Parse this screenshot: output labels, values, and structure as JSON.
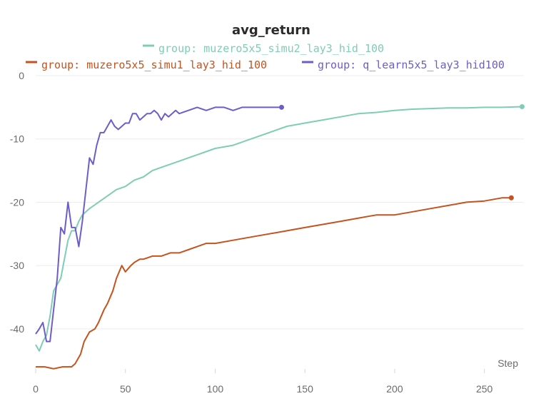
{
  "chart_data": {
    "type": "line",
    "title": "avg_return",
    "xlabel": "Step",
    "ylabel": "",
    "xlim": [
      0,
      272
    ],
    "ylim": [
      -47,
      0
    ],
    "xticks": [
      0,
      50,
      100,
      150,
      200,
      250
    ],
    "yticks": [
      0,
      -10,
      -20,
      -30,
      -40
    ],
    "grid": true,
    "legend_position": "top",
    "series": [
      {
        "name": "group: muzero5x5_simu2_lay3_hid_100",
        "color": "#7fcdb4",
        "x": [
          0,
          2,
          4,
          6,
          8,
          10,
          12,
          14,
          16,
          18,
          20,
          22,
          24,
          26,
          28,
          30,
          35,
          40,
          45,
          50,
          55,
          60,
          65,
          70,
          75,
          80,
          85,
          90,
          95,
          100,
          110,
          120,
          130,
          140,
          150,
          160,
          170,
          180,
          190,
          200,
          210,
          220,
          230,
          240,
          250,
          260,
          271
        ],
        "values": [
          -42.5,
          -43.5,
          -42,
          -41,
          -38,
          -34,
          -33,
          -32,
          -29,
          -26,
          -24.5,
          -24.5,
          -23,
          -22,
          -21.5,
          -21,
          -20,
          -19,
          -18,
          -17.5,
          -16.5,
          -16,
          -15,
          -14.5,
          -14,
          -13.5,
          -13,
          -12.5,
          -12,
          -11.5,
          -11,
          -10,
          -9,
          -8,
          -7.5,
          -7,
          -6.5,
          -6,
          -5.8,
          -5.5,
          -5.3,
          -5.2,
          -5.1,
          -5.1,
          -5.0,
          -5.0,
          -4.9
        ]
      },
      {
        "name": "group: muzero5x5_simu1_lay3_hid_100",
        "color": "#c3541f",
        "x": [
          0,
          5,
          10,
          15,
          20,
          22,
          25,
          27,
          30,
          33,
          35,
          38,
          40,
          43,
          45,
          48,
          50,
          53,
          55,
          58,
          60,
          65,
          70,
          75,
          80,
          85,
          90,
          95,
          100,
          110,
          120,
          130,
          140,
          150,
          160,
          170,
          180,
          190,
          200,
          210,
          220,
          230,
          240,
          250,
          260,
          265
        ],
        "values": [
          -46,
          -46,
          -46.3,
          -46,
          -46,
          -45.5,
          -44,
          -42,
          -40.5,
          -40,
          -39,
          -37,
          -36,
          -34,
          -32,
          -30,
          -31,
          -30,
          -29.5,
          -29,
          -29,
          -28.5,
          -28.5,
          -28,
          -28,
          -27.5,
          -27,
          -26.5,
          -26.5,
          -26,
          -25.5,
          -25,
          -24.5,
          -24,
          -23.5,
          -23,
          -22.5,
          -22,
          -22,
          -21.5,
          -21,
          -20.5,
          -20,
          -19.8,
          -19.3,
          -19.3
        ]
      },
      {
        "name": "group: q_learn5x5_lay3_hid100",
        "color": "#6e5dc8",
        "x": [
          0,
          2,
          4,
          6,
          8,
          10,
          12,
          14,
          16,
          18,
          20,
          22,
          24,
          26,
          28,
          30,
          32,
          34,
          36,
          38,
          40,
          42,
          44,
          46,
          48,
          50,
          52,
          54,
          56,
          58,
          60,
          62,
          64,
          66,
          68,
          70,
          72,
          74,
          76,
          78,
          80,
          85,
          90,
          95,
          100,
          105,
          110,
          115,
          120,
          125,
          130,
          137
        ],
        "values": [
          -40.8,
          -40,
          -39,
          -42,
          -42,
          -37,
          -32,
          -24,
          -25,
          -20,
          -24,
          -24,
          -27,
          -23,
          -18,
          -13,
          -14,
          -11,
          -9,
          -9,
          -8,
          -7,
          -8,
          -8.5,
          -8,
          -7.5,
          -7.5,
          -6,
          -6,
          -7,
          -6.5,
          -6,
          -6,
          -5.5,
          -6,
          -7,
          -6,
          -6.5,
          -6,
          -5.5,
          -6,
          -5.5,
          -5,
          -5.5,
          -5,
          -5,
          -5.5,
          -5,
          -5,
          -5,
          -5,
          -5
        ]
      }
    ]
  }
}
